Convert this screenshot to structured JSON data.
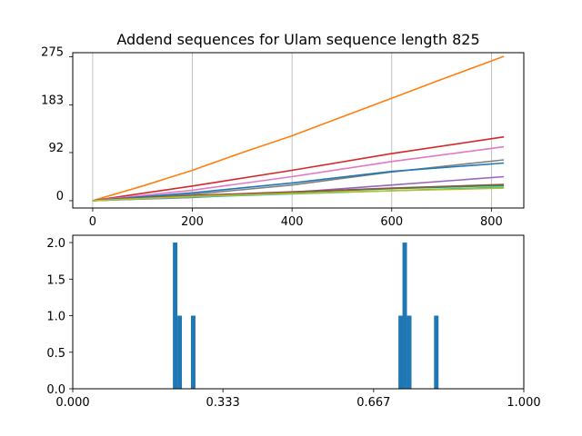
{
  "chart_data": [
    {
      "type": "line",
      "title": "Addend sequences for Ulam sequence length 825",
      "xlabel": "",
      "ylabel": "",
      "xlim": [
        -40,
        865
      ],
      "ylim": [
        -14,
        283
      ],
      "x_ticks": [
        0,
        200,
        400,
        600,
        800
      ],
      "y_ticks": [
        0,
        92,
        183,
        275
      ],
      "grid": "vertical",
      "legend": "none",
      "series": [
        {
          "color": "#ff7f0e",
          "x": [
            0,
            100,
            200,
            300,
            400,
            500,
            600,
            700,
            825
          ],
          "y": [
            0,
            28,
            58,
            92,
            124,
            160,
            196,
            232,
            276
          ]
        },
        {
          "color": "#d62728",
          "x": [
            0,
            200,
            400,
            600,
            825
          ],
          "y": [
            0,
            28,
            58,
            90,
            122
          ]
        },
        {
          "color": "#e377c2",
          "x": [
            0,
            200,
            400,
            600,
            825
          ],
          "y": [
            0,
            20,
            46,
            75,
            103
          ]
        },
        {
          "color": "#7f7f7f",
          "x": [
            0,
            200,
            400,
            600,
            825
          ],
          "y": [
            0,
            12,
            30,
            55,
            78
          ]
        },
        {
          "color": "#1f77b4",
          "x": [
            0,
            200,
            400,
            600,
            825
          ],
          "y": [
            0,
            15,
            34,
            56,
            72
          ]
        },
        {
          "color": "#9467bd",
          "x": [
            0,
            200,
            400,
            600,
            825
          ],
          "y": [
            0,
            6,
            16,
            30,
            46
          ]
        },
        {
          "color": "#2ca02c",
          "x": [
            0,
            200,
            400,
            600,
            825
          ],
          "y": [
            0,
            9,
            16,
            23,
            29
          ]
        },
        {
          "color": "#8c564b",
          "x": [
            0,
            200,
            400,
            600,
            825
          ],
          "y": [
            0,
            10,
            17,
            24,
            31
          ]
        },
        {
          "color": "#17becf",
          "x": [
            0,
            200,
            400,
            600,
            825
          ],
          "y": [
            0,
            7,
            13,
            19,
            26
          ]
        },
        {
          "color": "#bcbd22",
          "x": [
            0,
            200,
            400,
            600,
            825
          ],
          "y": [
            0,
            8,
            14,
            19,
            24
          ]
        }
      ]
    },
    {
      "type": "bar",
      "title": "",
      "xlabel": "",
      "ylabel": "",
      "xlim": [
        0,
        1
      ],
      "ylim": [
        0,
        2.1
      ],
      "x_ticks": [
        0.0,
        0.333,
        0.667,
        1.0
      ],
      "x_tick_labels": [
        "0.000",
        "0.333",
        "0.667",
        "1.000"
      ],
      "y_ticks": [
        0.0,
        0.5,
        1.0,
        1.5,
        2.0
      ],
      "y_tick_labels": [
        "0.0",
        "0.5",
        "1.0",
        "1.5",
        "2.0"
      ],
      "bin_width": 0.01,
      "color": "#1f77b4",
      "bins": [
        {
          "x": 0.222,
          "count": 2
        },
        {
          "x": 0.232,
          "count": 1
        },
        {
          "x": 0.262,
          "count": 1
        },
        {
          "x": 0.722,
          "count": 1
        },
        {
          "x": 0.731,
          "count": 2
        },
        {
          "x": 0.741,
          "count": 1
        },
        {
          "x": 0.801,
          "count": 1
        }
      ]
    }
  ]
}
